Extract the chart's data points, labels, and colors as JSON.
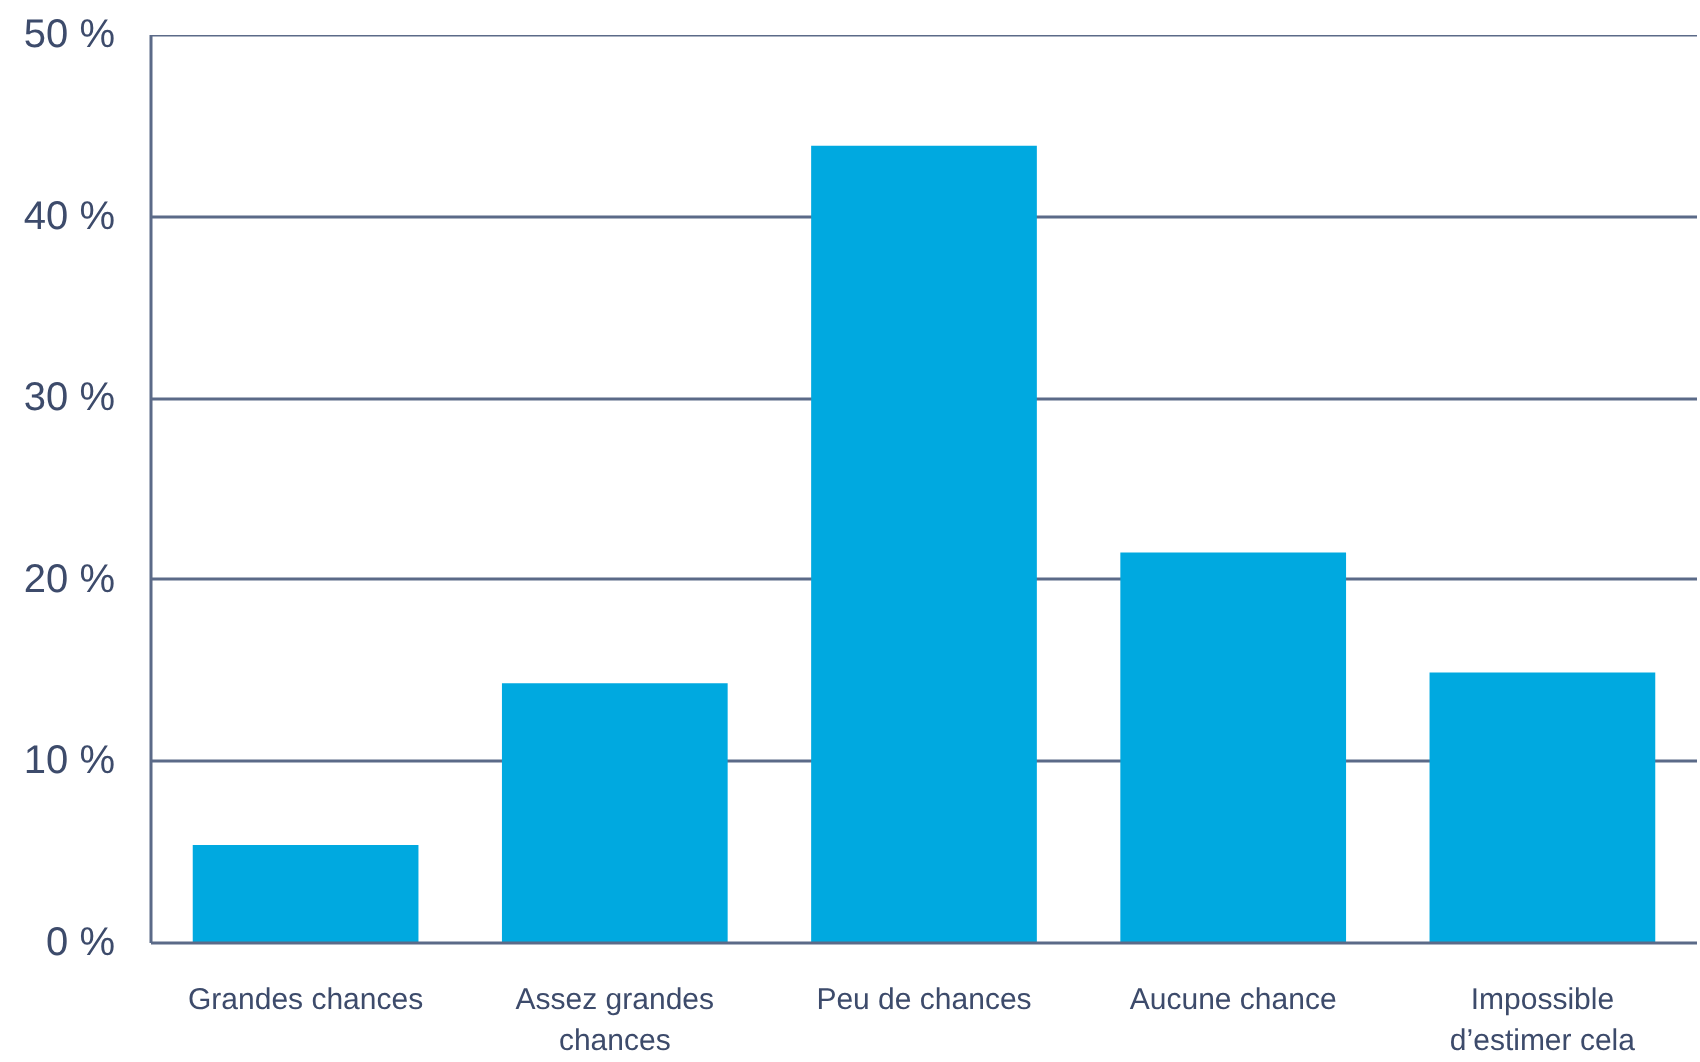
{
  "chart_data": {
    "type": "bar",
    "categories": [
      "Grandes chances",
      "Assez grandes chances",
      "Peu de chances",
      "Aucune chance",
      "Impossible d’estimer cela"
    ],
    "values": [
      5.4,
      14.3,
      43.9,
      21.5,
      14.9
    ],
    "color": "#00a9e0",
    "ylim": [
      0,
      50
    ],
    "yticks": [
      {
        "value": 0,
        "label": "0 %"
      },
      {
        "value": 10,
        "label": "10 %"
      },
      {
        "value": 20,
        "label": "20 %"
      },
      {
        "value": 30,
        "label": "30 %"
      },
      {
        "value": 40,
        "label": "40 %"
      },
      {
        "value": 50,
        "label": "50 %"
      }
    ],
    "grid": "y"
  }
}
